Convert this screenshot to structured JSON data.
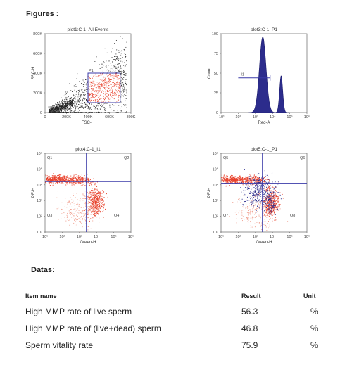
{
  "figures_label": "Figures :",
  "datas_label": "Datas:",
  "chart_data": [
    {
      "type": "scatter",
      "title": "plot1:C-1_All Events",
      "xlabel": "FSC-H",
      "ylabel": "SSC-H",
      "xlim": [
        0,
        800
      ],
      "ylim": [
        0,
        800
      ],
      "x_ticks": [
        "0",
        "200K",
        "400K",
        "600K",
        "800K"
      ],
      "y_ticks": [
        "0",
        "200K",
        "400K",
        "600K",
        "800K"
      ],
      "gates": [
        {
          "name": "P1",
          "x": [
            400,
            700
          ],
          "y": [
            100,
            400
          ]
        }
      ]
    },
    {
      "type": "area",
      "title": "plot3:C-1_P1",
      "xlabel": "Red-A",
      "ylabel": "Count",
      "x_ticks": [
        "-10¹",
        "10¹",
        "10³",
        "10⁴",
        "10⁵",
        "10⁶"
      ],
      "y_ticks": [
        "0",
        "25",
        "50",
        "75",
        "100"
      ],
      "ylim": [
        0,
        100
      ],
      "peaks": [
        {
          "x": 2.4,
          "y": 96
        },
        {
          "x": 3.9,
          "y": 47
        }
      ],
      "gates": [
        {
          "name": "I1",
          "x": [
            0.4,
            3.0
          ],
          "y": 44
        }
      ]
    },
    {
      "type": "scatter",
      "title": "plot4:C-1_I1",
      "xlabel": "Green-H",
      "ylabel": "PE-H",
      "x_ticks": [
        "10¹",
        "10²",
        "10³",
        "10⁴",
        "10⁵",
        "10⁶"
      ],
      "y_ticks": [
        "10¹",
        "10²",
        "10³",
        "10⁴",
        "10⁵",
        "10⁶"
      ],
      "quadrants": [
        "Q1",
        "Q2",
        "Q3",
        "Q4"
      ],
      "divider": {
        "x": 3.4,
        "y": 4.2
      }
    },
    {
      "type": "scatter",
      "title": "plot5:C-1_P1",
      "xlabel": "Green-H",
      "ylabel": "PE-H",
      "x_ticks": [
        "10¹",
        "10²",
        "10³",
        "10⁴",
        "10⁵",
        "10⁶"
      ],
      "y_ticks": [
        "10¹",
        "10²",
        "10³",
        "10⁴",
        "10⁵",
        "10⁶"
      ],
      "quadrants": [
        "Q5",
        "Q6",
        "Q7",
        "Q8"
      ],
      "divider": {
        "x": 3.4,
        "y": 4.1
      }
    }
  ],
  "table": {
    "headers": {
      "item": "Item name",
      "result": "Result",
      "unit": "Unit"
    },
    "rows": [
      {
        "item": "High MMP rate of live sperm",
        "result": "56.3",
        "unit": "%"
      },
      {
        "item": "High MMP rate of (live+dead) sperm",
        "result": "46.8",
        "unit": "%"
      },
      {
        "item": "Sperm vitality rate",
        "result": "75.9",
        "unit": "%"
      }
    ]
  },
  "colors": {
    "black_dots": "#222222",
    "red_dots": "#e8412b",
    "blue": "#2c2c8c",
    "gate": "#3a3aa8"
  }
}
